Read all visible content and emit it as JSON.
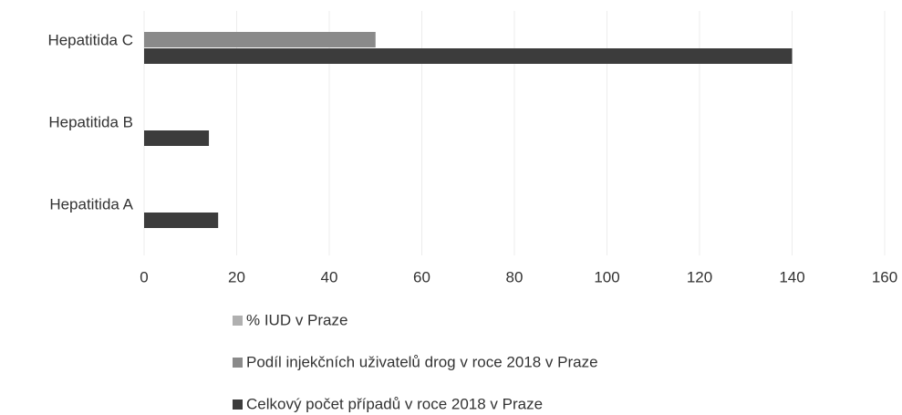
{
  "chart_data": {
    "type": "hbar",
    "categories": [
      "Hepatitida C",
      "Hepatitida B",
      "Hepatitida A"
    ],
    "series": [
      {
        "name": "% IUD  v Praze",
        "color": "#b0b0b0",
        "values": [
          null,
          null,
          null
        ]
      },
      {
        "name": "Podíl injekčních uživatelů drog v roce 2018 v Praze",
        "color": "#8a8a8a",
        "values": [
          50,
          null,
          null
        ]
      },
      {
        "name": "Celkový počet případů v roce 2018 v Praze",
        "color": "#3c3c3c",
        "values": [
          140,
          14,
          16
        ]
      }
    ],
    "xlim": [
      0,
      160
    ],
    "xticks": [
      0,
      20,
      40,
      60,
      80,
      100,
      120,
      140,
      160
    ],
    "grid": true
  }
}
